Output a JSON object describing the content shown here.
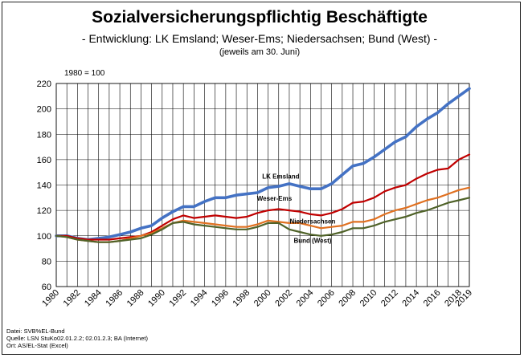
{
  "header": {
    "title": "Sozialversicherungspflichtig Beschäftigte",
    "subtitle": "- Entwicklung: LK Emsland; Weser-Ems; Niedersachsen; Bund (West) -",
    "note": "(jeweils am 30. Juni)"
  },
  "base_note": "1980 = 100",
  "footer": {
    "line1": "Datei: SVB%EL-Bund",
    "line2": "Quelle: LSN  StuKo02.01.2.2; 02.01.2.3; BA (Internet)",
    "line3": "Ort: AS/EL-Stat (Excel)"
  },
  "chart_data": {
    "type": "line",
    "title": "Sozialversicherungspflichtig Beschäftigte",
    "xlabel": "",
    "ylabel": "",
    "ylim": [
      60,
      220
    ],
    "yticks": [
      60,
      80,
      100,
      120,
      140,
      160,
      180,
      200,
      220
    ],
    "xlim": [
      1980,
      2019
    ],
    "xtick_labels": [
      "1980",
      "1982",
      "1984",
      "1986",
      "1988",
      "1990",
      "1992",
      "1994",
      "1996",
      "1998",
      "2000",
      "2002",
      "2004",
      "2006",
      "2008",
      "2010",
      "2012",
      "2014",
      "2016",
      "2018",
      "2019"
    ],
    "grid": true,
    "x": [
      1980,
      1981,
      1982,
      1983,
      1984,
      1985,
      1986,
      1987,
      1988,
      1989,
      1990,
      1991,
      1992,
      1993,
      1994,
      1995,
      1996,
      1997,
      1998,
      1999,
      2000,
      2001,
      2002,
      2003,
      2004,
      2005,
      2006,
      2007,
      2008,
      2009,
      2010,
      2011,
      2012,
      2013,
      2014,
      2015,
      2016,
      2017,
      2018,
      2019
    ],
    "series": [
      {
        "name": "LK Emsland",
        "color": "#4472C4",
        "values": [
          100,
          100,
          98,
          97,
          98,
          99,
          101,
          103,
          106,
          108,
          114,
          119,
          123,
          123,
          127,
          130,
          130,
          132,
          133,
          134,
          138,
          139,
          141,
          139,
          137,
          137,
          141,
          148,
          155,
          157,
          162,
          168,
          174,
          178,
          186,
          192,
          197,
          204,
          210,
          216
        ]
      },
      {
        "name": "Weser-Ems",
        "color": "#C00000",
        "values": [
          100,
          100,
          98,
          97,
          97,
          97,
          98,
          99,
          100,
          103,
          108,
          113,
          116,
          114,
          115,
          116,
          115,
          114,
          115,
          118,
          120,
          121,
          120,
          119,
          117,
          116,
          118,
          121,
          126,
          127,
          130,
          135,
          138,
          140,
          145,
          149,
          152,
          153,
          160,
          164
        ]
      },
      {
        "name": "Niedersachsen",
        "color": "#E07020",
        "values": [
          100,
          99,
          97,
          96,
          95,
          95,
          96,
          98,
          100,
          102,
          106,
          110,
          112,
          111,
          110,
          109,
          108,
          107,
          107,
          109,
          112,
          111,
          110,
          110,
          108,
          106,
          107,
          108,
          111,
          111,
          113,
          117,
          120,
          122,
          125,
          128,
          130,
          133,
          136,
          138
        ]
      },
      {
        "name": "Bund (West)",
        "color": "#4F6228",
        "values": [
          100,
          99,
          97,
          96,
          95,
          95,
          96,
          97,
          98,
          101,
          105,
          110,
          111,
          109,
          108,
          107,
          106,
          105,
          105,
          107,
          110,
          110,
          105,
          103,
          101,
          100,
          101,
          103,
          106,
          106,
          108,
          111,
          113,
          115,
          118,
          120,
          123,
          126,
          128,
          130
        ]
      }
    ]
  }
}
